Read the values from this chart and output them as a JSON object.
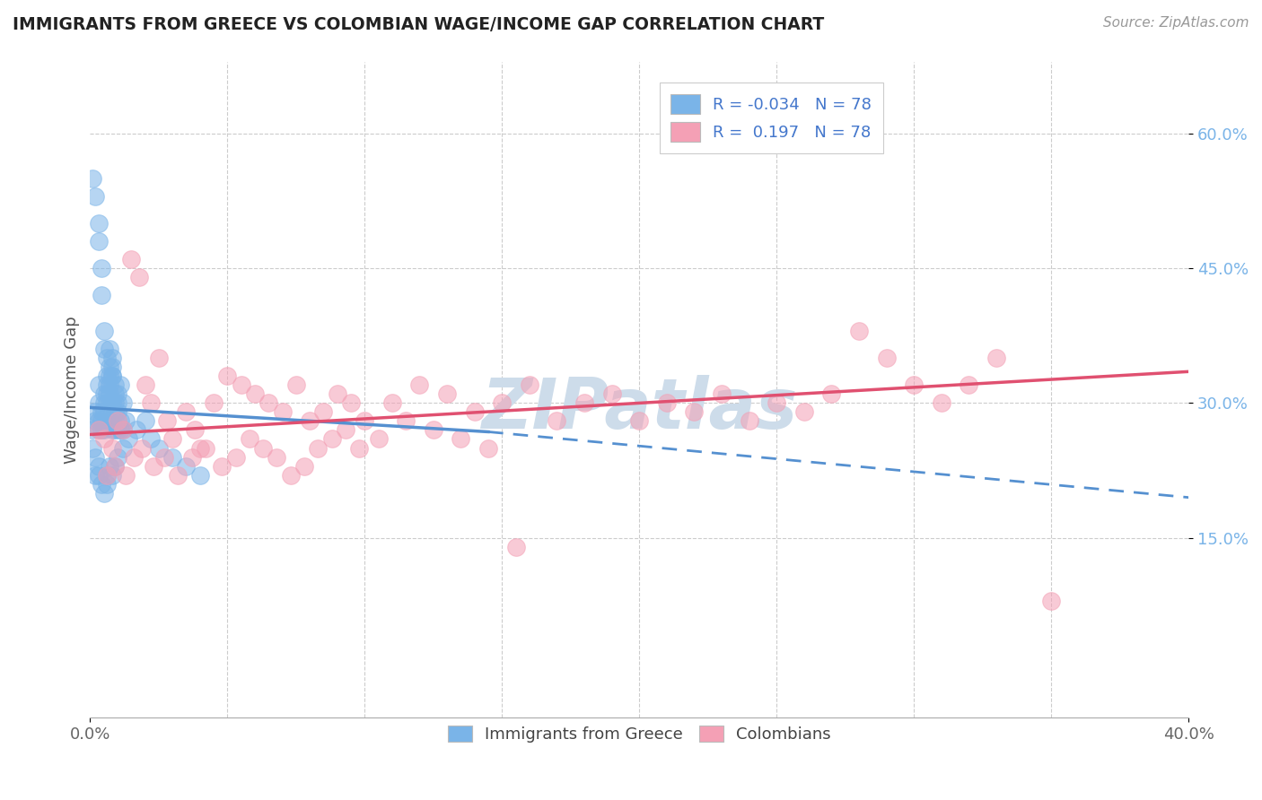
{
  "title": "IMMIGRANTS FROM GREECE VS COLOMBIAN WAGE/INCOME GAP CORRELATION CHART",
  "source": "Source: ZipAtlas.com",
  "ylabel": "Wage/Income Gap",
  "yticks": [
    "15.0%",
    "30.0%",
    "45.0%",
    "60.0%"
  ],
  "ytick_vals": [
    0.15,
    0.3,
    0.45,
    0.6
  ],
  "xlim": [
    0.0,
    0.4
  ],
  "ylim": [
    -0.05,
    0.68
  ],
  "blue_R": "-0.034",
  "blue_N": "78",
  "pink_R": "0.197",
  "pink_N": "78",
  "blue_color": "#7ab4e8",
  "pink_color": "#f4a0b5",
  "blue_line_color": "#5590d0",
  "pink_line_color": "#e05070",
  "watermark": "ZIPatlas",
  "watermark_color": "#cddcea",
  "legend_label_blue": "Immigrants from Greece",
  "legend_label_pink": "Colombians",
  "blue_x": [
    0.001,
    0.002,
    0.002,
    0.003,
    0.003,
    0.003,
    0.003,
    0.004,
    0.004,
    0.004,
    0.005,
    0.005,
    0.005,
    0.005,
    0.006,
    0.006,
    0.006,
    0.006,
    0.007,
    0.007,
    0.007,
    0.007,
    0.008,
    0.008,
    0.008,
    0.008,
    0.009,
    0.009,
    0.009,
    0.01,
    0.01,
    0.01,
    0.011,
    0.011,
    0.012,
    0.012,
    0.013,
    0.001,
    0.002,
    0.003,
    0.003,
    0.004,
    0.004,
    0.005,
    0.005,
    0.006,
    0.006,
    0.007,
    0.007,
    0.008,
    0.008,
    0.009,
    0.009,
    0.01,
    0.01,
    0.011,
    0.001,
    0.002,
    0.002,
    0.003,
    0.003,
    0.004,
    0.005,
    0.006,
    0.006,
    0.007,
    0.008,
    0.009,
    0.01,
    0.012,
    0.014,
    0.017,
    0.02,
    0.022,
    0.025,
    0.03,
    0.035,
    0.04
  ],
  "blue_y": [
    0.27,
    0.28,
    0.29,
    0.3,
    0.27,
    0.28,
    0.32,
    0.29,
    0.28,
    0.27,
    0.31,
    0.3,
    0.29,
    0.27,
    0.32,
    0.31,
    0.3,
    0.28,
    0.33,
    0.32,
    0.31,
    0.28,
    0.34,
    0.33,
    0.3,
    0.27,
    0.32,
    0.29,
    0.27,
    0.31,
    0.3,
    0.27,
    0.32,
    0.28,
    0.3,
    0.27,
    0.28,
    0.55,
    0.53,
    0.5,
    0.48,
    0.45,
    0.42,
    0.38,
    0.36,
    0.35,
    0.33,
    0.36,
    0.34,
    0.35,
    0.33,
    0.31,
    0.3,
    0.29,
    0.28,
    0.27,
    0.25,
    0.24,
    0.22,
    0.23,
    0.22,
    0.21,
    0.2,
    0.21,
    0.22,
    0.23,
    0.22,
    0.23,
    0.24,
    0.25,
    0.26,
    0.27,
    0.28,
    0.26,
    0.25,
    0.24,
    0.23,
    0.22
  ],
  "pink_x": [
    0.003,
    0.005,
    0.008,
    0.01,
    0.012,
    0.015,
    0.018,
    0.02,
    0.022,
    0.025,
    0.028,
    0.03,
    0.035,
    0.038,
    0.04,
    0.045,
    0.05,
    0.055,
    0.06,
    0.065,
    0.07,
    0.075,
    0.08,
    0.085,
    0.09,
    0.095,
    0.1,
    0.11,
    0.12,
    0.13,
    0.14,
    0.15,
    0.16,
    0.17,
    0.18,
    0.19,
    0.2,
    0.21,
    0.22,
    0.23,
    0.24,
    0.25,
    0.26,
    0.27,
    0.28,
    0.29,
    0.3,
    0.31,
    0.32,
    0.33,
    0.006,
    0.009,
    0.013,
    0.016,
    0.019,
    0.023,
    0.027,
    0.032,
    0.037,
    0.042,
    0.048,
    0.053,
    0.058,
    0.063,
    0.068,
    0.073,
    0.078,
    0.083,
    0.088,
    0.093,
    0.098,
    0.105,
    0.115,
    0.125,
    0.135,
    0.145,
    0.155,
    0.35
  ],
  "pink_y": [
    0.27,
    0.26,
    0.25,
    0.28,
    0.27,
    0.46,
    0.44,
    0.32,
    0.3,
    0.35,
    0.28,
    0.26,
    0.29,
    0.27,
    0.25,
    0.3,
    0.33,
    0.32,
    0.31,
    0.3,
    0.29,
    0.32,
    0.28,
    0.29,
    0.31,
    0.3,
    0.28,
    0.3,
    0.32,
    0.31,
    0.29,
    0.3,
    0.32,
    0.28,
    0.3,
    0.31,
    0.28,
    0.3,
    0.29,
    0.31,
    0.28,
    0.3,
    0.29,
    0.31,
    0.38,
    0.35,
    0.32,
    0.3,
    0.32,
    0.35,
    0.22,
    0.23,
    0.22,
    0.24,
    0.25,
    0.23,
    0.24,
    0.22,
    0.24,
    0.25,
    0.23,
    0.24,
    0.26,
    0.25,
    0.24,
    0.22,
    0.23,
    0.25,
    0.26,
    0.27,
    0.25,
    0.26,
    0.28,
    0.27,
    0.26,
    0.25,
    0.14,
    0.08
  ],
  "blue_line_x0": 0.0,
  "blue_line_x_solid_end": 0.145,
  "blue_line_x1": 0.4,
  "blue_line_y0": 0.295,
  "blue_line_y_solid_end": 0.268,
  "blue_line_y1": 0.195,
  "pink_line_x0": 0.0,
  "pink_line_x1": 0.4,
  "pink_line_y0": 0.265,
  "pink_line_y1": 0.335
}
